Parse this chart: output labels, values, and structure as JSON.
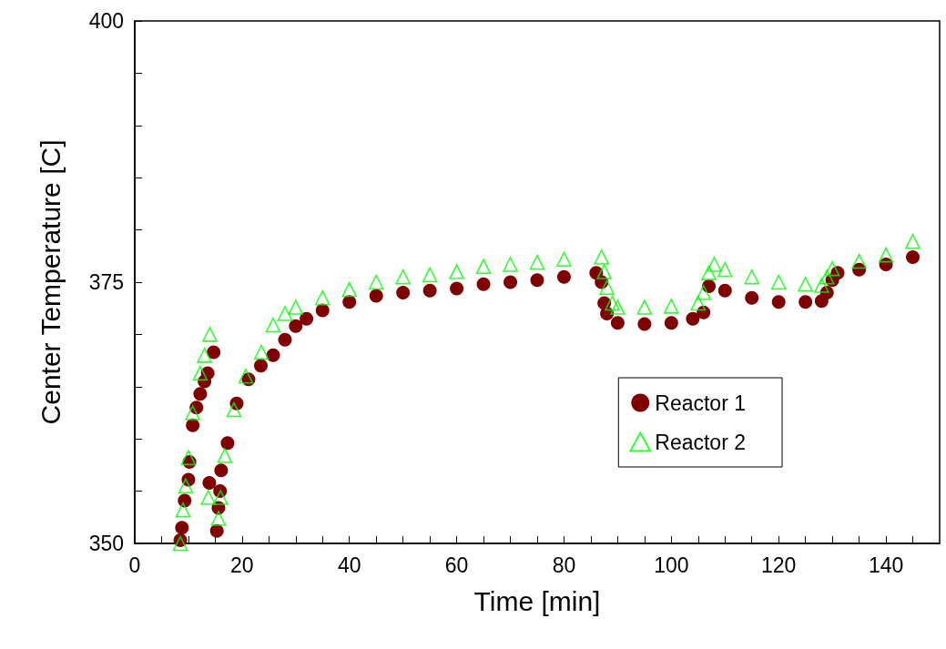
{
  "chart_data": {
    "type": "scatter",
    "xlabel": "Time [min]",
    "ylabel": "Center Temperature [C]",
    "xlim": [
      0,
      150
    ],
    "ylim": [
      350,
      400
    ],
    "xticks": [
      0,
      {
        "value": 5,
        "label": null
      },
      {
        "value": 10,
        "label": null
      },
      {
        "value": 15,
        "label": null
      },
      20,
      {
        "value": 25,
        "label": null
      },
      {
        "value": 30,
        "label": null
      },
      {
        "value": 35,
        "label": null
      },
      40,
      {
        "value": 45,
        "label": null
      },
      {
        "value": 50,
        "label": null
      },
      {
        "value": 55,
        "label": null
      },
      60,
      {
        "value": 65,
        "label": null
      },
      {
        "value": 70,
        "label": null
      },
      {
        "value": 75,
        "label": null
      },
      80,
      {
        "value": 85,
        "label": null
      },
      {
        "value": 90,
        "label": null
      },
      {
        "value": 95,
        "label": null
      },
      100,
      {
        "value": 105,
        "label": null
      },
      {
        "value": 110,
        "label": null
      },
      {
        "value": 115,
        "label": null
      },
      120,
      {
        "value": 125,
        "label": null
      },
      {
        "value": 130,
        "label": null
      },
      {
        "value": 135,
        "label": null
      },
      140,
      {
        "value": 145,
        "label": null
      }
    ],
    "yticks": [
      350,
      {
        "value": 355,
        "label": null
      },
      {
        "value": 360,
        "label": null
      },
      {
        "value": 365,
        "label": null
      },
      {
        "value": 370,
        "label": null
      },
      375,
      {
        "value": 380,
        "label": null
      },
      {
        "value": 385,
        "label": null
      },
      {
        "value": 390,
        "label": null
      },
      {
        "value": 395,
        "label": null
      },
      400
    ],
    "grid": false,
    "legend": "right",
    "series": [
      {
        "name": "Reactor 1",
        "color": "#800000",
        "marker": "circle",
        "x": [
          8.5,
          8.8,
          9.3,
          10,
          10.2,
          10.8,
          11.5,
          12.2,
          13,
          13.6,
          14.7,
          13.9,
          15.3,
          15.6,
          15.9,
          16.1,
          17.3,
          19,
          21.2,
          23.5,
          25.8,
          28,
          30,
          32,
          35,
          40,
          45,
          50,
          55,
          60,
          65,
          70,
          75,
          80,
          86,
          87,
          87.5,
          88,
          90,
          95,
          100,
          104,
          106,
          107,
          110,
          115,
          120,
          125,
          128,
          129,
          130,
          131,
          135,
          140,
          145
        ],
        "values": [
          350.3,
          351.5,
          354.1,
          356.1,
          357.8,
          361.3,
          363,
          364.3,
          365.5,
          366.3,
          368.3,
          355.8,
          351.2,
          353.4,
          355,
          357,
          359.6,
          363.4,
          365.7,
          367,
          368,
          369.5,
          370.8,
          371.5,
          372.3,
          373.1,
          373.7,
          374,
          374.2,
          374.4,
          374.8,
          375,
          375.2,
          375.5,
          375.9,
          375,
          373,
          372,
          371.1,
          371,
          371.1,
          371.5,
          372.1,
          374.6,
          374.2,
          373.5,
          373.1,
          373.1,
          373.2,
          374,
          375.2,
          375.9,
          376.2,
          376.7,
          377.4
        ]
      },
      {
        "name": "Reactor 2",
        "color": "#00ff00",
        "marker": "triangle",
        "x": [
          8.5,
          9,
          9.5,
          10,
          10.8,
          12.2,
          13,
          14,
          13.7,
          15.6,
          16,
          16.8,
          18.5,
          20.7,
          23.6,
          25.8,
          28,
          30,
          35,
          40,
          45,
          50,
          55,
          60,
          65,
          70,
          75,
          80,
          87,
          87.5,
          88,
          89,
          90,
          95,
          100,
          105,
          106,
          107,
          108,
          110,
          115,
          120,
          125,
          128,
          129,
          130,
          135,
          140,
          145
        ],
        "values": [
          350,
          353.2,
          355.5,
          358.2,
          362.5,
          366.3,
          368,
          370,
          354.4,
          352.4,
          354.4,
          358.4,
          362.8,
          366,
          368.3,
          370.9,
          372,
          372.6,
          373.5,
          374.3,
          375,
          375.5,
          375.7,
          376,
          376.5,
          376.7,
          376.9,
          377.2,
          377.4,
          376,
          374.5,
          373,
          372.6,
          372.6,
          372.7,
          373,
          374,
          375.9,
          376.7,
          376.2,
          375.5,
          375,
          374.8,
          374.7,
          375.5,
          376.3,
          377,
          377.6,
          378.9
        ]
      }
    ]
  }
}
